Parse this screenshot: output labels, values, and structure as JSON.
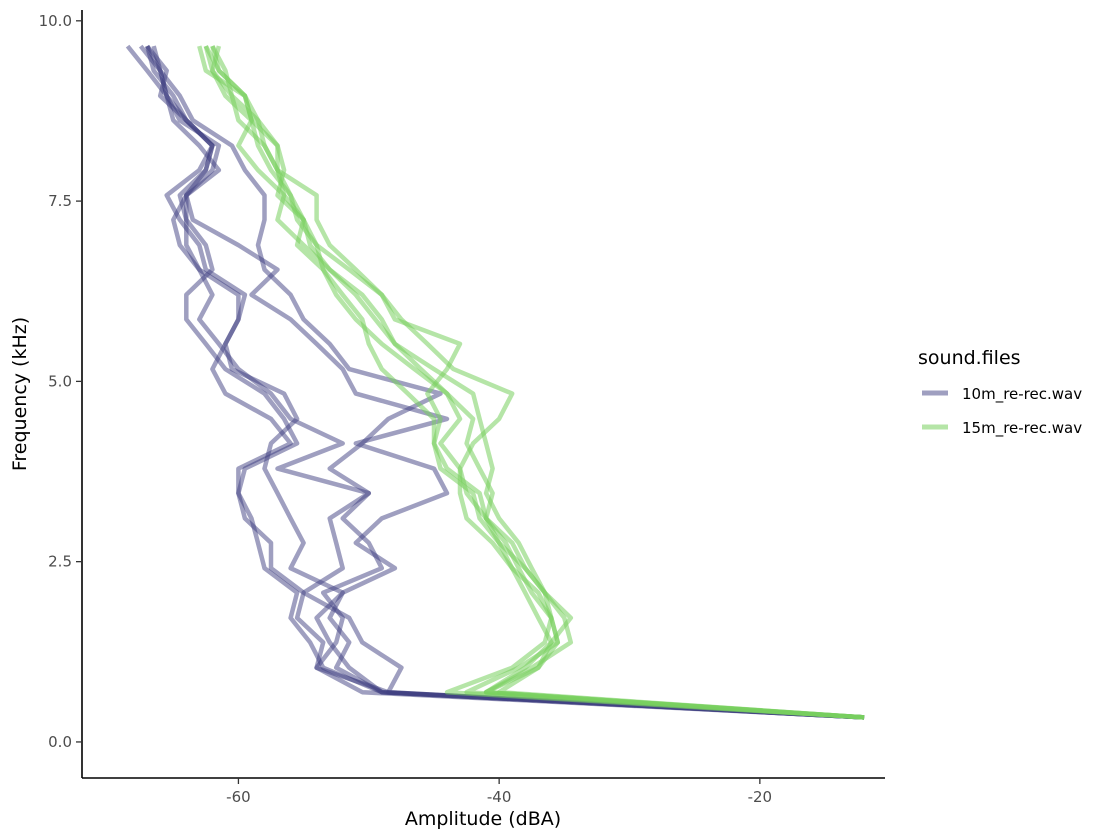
{
  "chart_data": {
    "type": "line",
    "title": "",
    "xlabel": "Amplitude (dBA)",
    "ylabel": "Frequency (kHz)",
    "xlim": [
      -72,
      -10.4
    ],
    "ylim": [
      -0.5,
      10.15
    ],
    "x_ticks": [
      -60,
      -40,
      -20
    ],
    "x_tick_labels": [
      "-60",
      "-40",
      "-20"
    ],
    "y_ticks": [
      0,
      2.5,
      5,
      7.5,
      10
    ],
    "y_tick_labels": [
      "0.0",
      "2.5",
      "5.0",
      "7.5",
      "10.0"
    ],
    "grid": false,
    "legend": {
      "title": "sound.files",
      "placement": "right",
      "entries": [
        "10m_re-rec.wav",
        "15m_re-rec.wav"
      ]
    },
    "frequency_kHz": [
      0.34,
      0.69,
      1.03,
      1.38,
      1.72,
      2.07,
      2.41,
      2.76,
      3.1,
      3.45,
      3.79,
      4.14,
      4.48,
      4.83,
      5.17,
      5.52,
      5.86,
      6.2,
      6.55,
      6.89,
      7.24,
      7.58,
      7.93,
      8.27,
      8.62,
      8.96,
      9.31,
      9.65
    ],
    "series": [
      {
        "group": "10m_re-rec.wav",
        "color": "#404082",
        "amplitude": [
          -12,
          -49,
          -52.5,
          -51.5,
          -53,
          -52,
          -48,
          -51,
          -49,
          -44,
          -45,
          -51,
          -44,
          -51,
          -52,
          -54,
          -56,
          -59,
          -57,
          -60,
          -63.5,
          -64,
          -62,
          -61.5,
          -64.5,
          -65.5,
          -66,
          -67
        ]
      },
      {
        "group": "10m_re-rec.wav",
        "color": "#404082",
        "amplitude": [
          -12,
          -48.5,
          -54,
          -52.5,
          -52,
          -53.5,
          -49,
          -50,
          -52,
          -50,
          -53,
          -50.5,
          -48.5,
          -44.5,
          -51.5,
          -53,
          -55,
          -56,
          -58,
          -58.5,
          -58,
          -58,
          -59.5,
          -60.5,
          -63.5,
          -64.5,
          -66,
          -66.5
        ]
      },
      {
        "group": "10m_re-rec.wav",
        "color": "#404082",
        "amplitude": [
          -12,
          -48.5,
          -47.5,
          -50.5,
          -51.5,
          -55,
          -52,
          -52.5,
          -53,
          -50,
          -57,
          -52,
          -56,
          -57.5,
          -60,
          -61.5,
          -63,
          -62,
          -63,
          -64.5,
          -65,
          -64,
          -61.5,
          -63,
          -65,
          -65.5,
          -67,
          -68.5
        ]
      },
      {
        "group": "10m_re-rec.wav",
        "color": "#404082",
        "amplitude": [
          -12,
          -49,
          -51.5,
          -53,
          -54,
          -52,
          -56,
          -55,
          -56,
          -57,
          -58,
          -57.5,
          -55.5,
          -56.5,
          -60.5,
          -61,
          -60,
          -60,
          -63,
          -64,
          -64,
          -64,
          -62.5,
          -62,
          -64,
          -65,
          -66.5,
          -67
        ]
      },
      {
        "group": "10m_re-rec.wav",
        "color": "#404082",
        "amplitude": [
          -12,
          -50.5,
          -54,
          -53.5,
          -55.5,
          -55,
          -57.5,
          -57.5,
          -59.5,
          -60,
          -60,
          -56,
          -57.5,
          -61,
          -62,
          -61,
          -60,
          -59.5,
          -62.5,
          -63,
          -64.5,
          -65.5,
          -63,
          -62,
          -64,
          -65.5,
          -66,
          -67.5
        ]
      },
      {
        "group": "10m_re-rec.wav",
        "color": "#404082",
        "amplitude": [
          -12,
          -49,
          -53.5,
          -54.5,
          -56,
          -55.5,
          -58,
          -58.5,
          -59,
          -60,
          -59.5,
          -55.5,
          -56.5,
          -58,
          -61,
          -62.5,
          -64,
          -64,
          -62,
          -62.5,
          -64,
          -64.5,
          -62.5,
          -62,
          -64,
          -66,
          -65.5,
          -67
        ]
      },
      {
        "group": "15m_re-rec.wav",
        "color": "#78cf5e",
        "amplitude": [
          -12,
          -41,
          -38,
          -36,
          -34.5,
          -36.5,
          -37.5,
          -38.5,
          -40,
          -41,
          -40.5,
          -41,
          -41.5,
          -42,
          -45,
          -48,
          -49.5,
          -51,
          -53,
          -54.5,
          -55,
          -56.5,
          -57,
          -57,
          -58.5,
          -60.5,
          -61,
          -62
        ]
      },
      {
        "group": "15m_re-rec.wav",
        "color": "#78cf5e",
        "amplitude": [
          -12,
          -42.5,
          -38.5,
          -35.5,
          -36,
          -37.5,
          -38.5,
          -39.5,
          -41,
          -42.5,
          -43,
          -42,
          -40,
          -39,
          -43.5,
          -45.5,
          -47.5,
          -49,
          -51.5,
          -54,
          -55.5,
          -56,
          -57,
          -58,
          -58.5,
          -59.5,
          -61.5,
          -62
        ]
      },
      {
        "group": "15m_re-rec.wav",
        "color": "#78cf5e",
        "amplitude": [
          -12,
          -44,
          -39,
          -36.5,
          -36,
          -36.5,
          -38,
          -39,
          -41,
          -41.5,
          -44,
          -45,
          -44.5,
          -45.5,
          -44,
          -43,
          -48,
          -49,
          -51,
          -53,
          -54,
          -54,
          -57,
          -58,
          -60,
          -60.5,
          -62,
          -61.5
        ]
      },
      {
        "group": "15m_re-rec.wav",
        "color": "#78cf5e",
        "amplitude": [
          -12,
          -41,
          -37.5,
          -34.5,
          -35,
          -36.5,
          -38,
          -40,
          -41.5,
          -42,
          -44.5,
          -45,
          -45,
          -47,
          -49,
          -50,
          -50.5,
          -52,
          -53.5,
          -54,
          -55,
          -57,
          -56.5,
          -57,
          -59,
          -59.5,
          -62.5,
          -63
        ]
      },
      {
        "group": "15m_re-rec.wav",
        "color": "#78cf5e",
        "amplitude": [
          -12,
          -41,
          -37,
          -35.5,
          -36,
          -37,
          -39,
          -40.5,
          -42.5,
          -43,
          -43,
          -44.5,
          -43,
          -44,
          -46,
          -48,
          -49,
          -50.5,
          -53,
          -55,
          -57,
          -56.5,
          -58.5,
          -60,
          -59,
          -61,
          -62,
          -62.5
        ]
      },
      {
        "group": "15m_re-rec.wav",
        "color": "#78cf5e",
        "amplitude": [
          -12,
          -40,
          -37,
          -36,
          -37,
          -38,
          -39,
          -40,
          -41,
          -40.5,
          -41.5,
          -42.5,
          -42,
          -44,
          -46.5,
          -49,
          -51,
          -52.5,
          -53.5,
          -55.5,
          -55,
          -56,
          -57.5,
          -58.5,
          -59,
          -59.5,
          -61.5,
          -62.5
        ]
      }
    ]
  }
}
